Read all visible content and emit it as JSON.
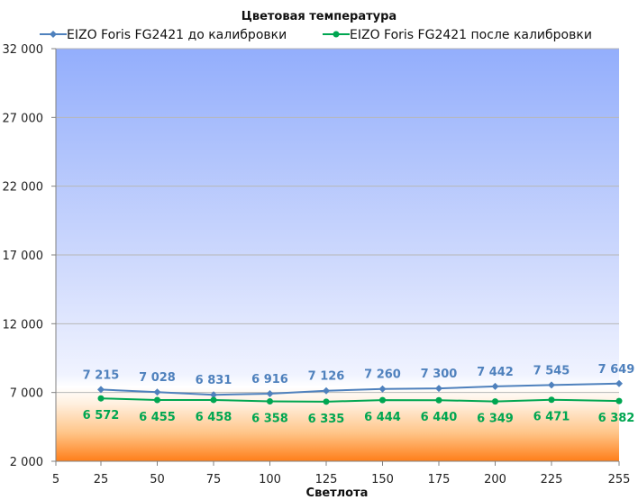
{
  "chart_data": {
    "type": "line",
    "title": "Цветовая температура",
    "xlabel": "Светлота",
    "ylabel": "",
    "x_ticks": [
      5,
      25,
      50,
      75,
      100,
      125,
      150,
      175,
      200,
      225,
      255
    ],
    "y_ticks": [
      2000,
      7000,
      12000,
      17000,
      22000,
      27000,
      32000
    ],
    "y_tick_labels": [
      "2 000",
      "7 000",
      "12 000",
      "17 000",
      "22 000",
      "27 000",
      "32 000"
    ],
    "xlim": [
      5,
      255
    ],
    "ylim": [
      2000,
      32000
    ],
    "grid": true,
    "legend_position": "top",
    "x": [
      25,
      50,
      75,
      100,
      125,
      150,
      175,
      200,
      225,
      255
    ],
    "series": [
      {
        "name": "EIZO Foris FG2421 до калибровки",
        "color": "#4f81bd",
        "marker": "diamond",
        "values": [
          7215,
          7028,
          6831,
          6916,
          7126,
          7260,
          7300,
          7442,
          7545,
          7649
        ],
        "labels": [
          "7 215",
          "7 028",
          "6 831",
          "6 916",
          "7 126",
          "7 260",
          "7 300",
          "7 442",
          "7 545",
          "7 649"
        ]
      },
      {
        "name": "EIZO Foris FG2421 после калибровки",
        "color": "#00a651",
        "marker": "circle",
        "values": [
          6572,
          6455,
          6458,
          6358,
          6335,
          6444,
          6440,
          6349,
          6471,
          6382
        ],
        "labels": [
          "6 572",
          "6 455",
          "6 458",
          "6 358",
          "6 335",
          "6 444",
          "6 440",
          "6 349",
          "6 471",
          "6 382"
        ]
      }
    ]
  }
}
